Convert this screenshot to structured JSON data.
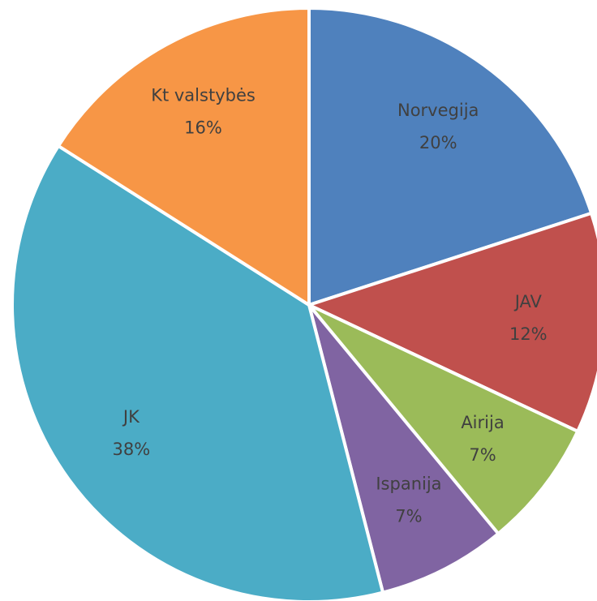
{
  "chart_data": {
    "type": "pie",
    "categories": [
      "Norvegija",
      "JAV",
      "Airija",
      "Ispanija",
      "JK",
      "Kt valstybės"
    ],
    "values": [
      20,
      12,
      7,
      7,
      38,
      16
    ],
    "value_labels": [
      "20%",
      "12%",
      "7%",
      "7%",
      "38%",
      "16%"
    ],
    "colors": [
      "#4f81bd",
      "#c0504d",
      "#9bbb59",
      "#8064a2",
      "#4bacc6",
      "#f79646"
    ]
  }
}
